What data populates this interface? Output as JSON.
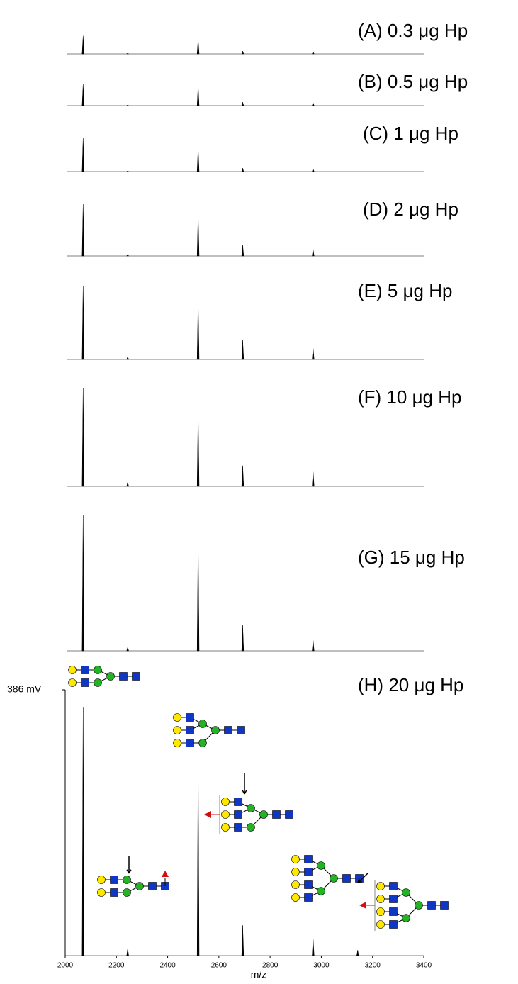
{
  "chart_data": [
    {
      "type": "spectrum",
      "title": "(A) 0.3 μg Hp",
      "x": [
        2070,
        2244,
        2519,
        2693,
        2968
      ],
      "values": [
        26,
        1,
        21,
        4,
        3
      ]
    },
    {
      "type": "spectrum",
      "title": "(B) 0.5 μg Hp",
      "x": [
        2070,
        2244,
        2519,
        2693,
        2968
      ],
      "values": [
        31,
        1,
        29,
        5,
        4
      ]
    },
    {
      "type": "spectrum",
      "title": "(C) 1 μg Hp",
      "x": [
        2070,
        2244,
        2519,
        2693,
        2968
      ],
      "values": [
        49,
        1,
        34,
        5,
        4
      ]
    },
    {
      "type": "spectrum",
      "title": "(D) 2 μg Hp",
      "x": [
        2070,
        2244,
        2519,
        2693,
        2968
      ],
      "values": [
        75,
        2,
        60,
        16,
        9
      ]
    },
    {
      "type": "spectrum",
      "title": "(E) 5 μg Hp",
      "x": [
        2070,
        2244,
        2519,
        2693,
        2968
      ],
      "values": [
        107,
        4,
        84,
        28,
        16
      ]
    },
    {
      "type": "spectrum",
      "title": "(F) 10 μg Hp",
      "x": [
        2070,
        2244,
        2519,
        2693,
        2968
      ],
      "values": [
        143,
        6,
        108,
        30,
        21
      ]
    },
    {
      "type": "spectrum",
      "title": "(G) 15 μg Hp",
      "x": [
        2070,
        2244,
        2519,
        2693,
        2968
      ],
      "values": [
        197,
        5,
        161,
        37,
        15
      ]
    },
    {
      "type": "spectrum",
      "title": "(H) 20 μg Hp",
      "x": [
        2070,
        2244,
        2519,
        2693,
        2968,
        3142
      ],
      "values": [
        361,
        10,
        284,
        44,
        24,
        8
      ],
      "xlim": [
        2000,
        3400
      ],
      "xticks": [
        2000,
        2200,
        2400,
        2600,
        2800,
        3000,
        3200,
        3400
      ],
      "xlabel": "m/z",
      "ylim": [
        0,
        386
      ],
      "yticks": [
        {
          "value": 386,
          "label": "386 mV"
        }
      ]
    }
  ]
}
